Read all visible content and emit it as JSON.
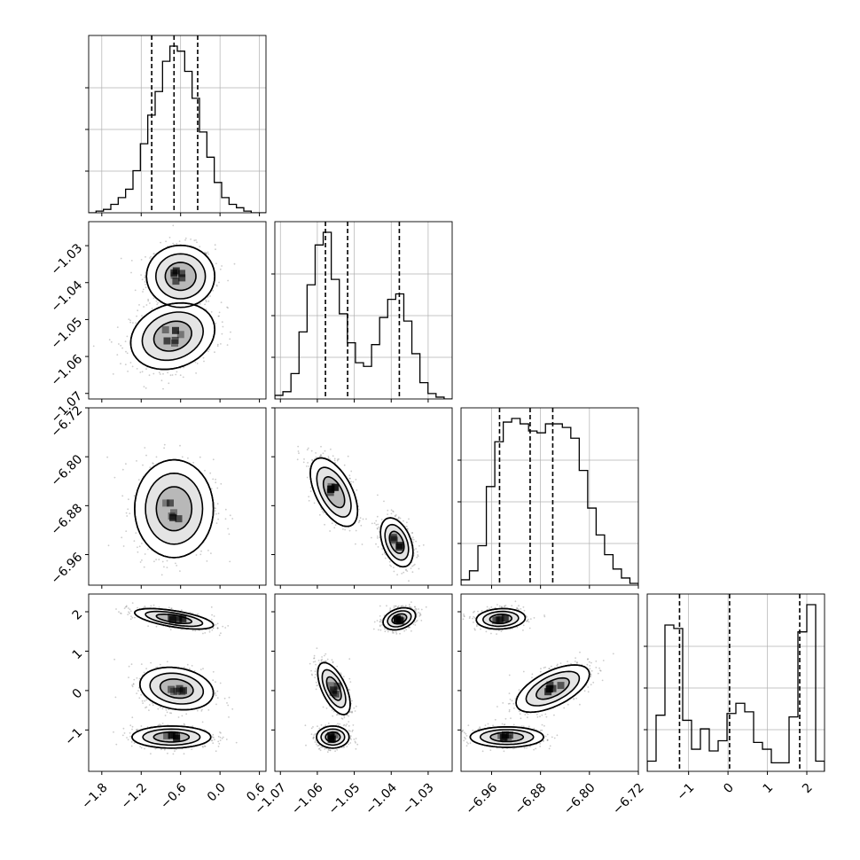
{
  "chart_data": {
    "type": "corner",
    "parameters": [
      "",
      "",
      "",
      ""
    ],
    "ranges": [
      [
        -2.0,
        0.7
      ],
      [
        -1.0715,
        -1.0235
      ],
      [
        -7.01,
        -6.72
      ],
      [
        -2.05,
        2.45
      ]
    ],
    "xticks": [
      {
        "values": [
          -1.8,
          -1.2,
          -0.6,
          0.0,
          0.6
        ],
        "labels": [
          "−1.8",
          "−1.2",
          "−0.6",
          "0.0",
          "0.6"
        ]
      },
      {
        "values": [
          -1.07,
          -1.06,
          -1.05,
          -1.04,
          -1.03
        ],
        "labels": [
          "−1.07",
          "−1.06",
          "−1.05",
          "−1.04",
          "−1.03"
        ]
      },
      {
        "values": [
          -6.96,
          -6.88,
          -6.8,
          -6.72
        ],
        "labels": [
          "−6.96",
          "−6.88",
          "−6.80",
          "−6.72"
        ]
      },
      {
        "values": [
          -1,
          0,
          1,
          2
        ],
        "labels": [
          "−1",
          "0",
          "1",
          "2"
        ]
      }
    ],
    "yticks": [
      null,
      {
        "values": [
          -1.03,
          -1.04,
          -1.05,
          -1.06,
          -1.07
        ],
        "labels": [
          "−1.03",
          "−1.04",
          "−1.05",
          "−1.06",
          "−1.07"
        ]
      },
      {
        "values": [
          -6.72,
          -6.8,
          -6.88,
          -6.96
        ],
        "labels": [
          "−6.72",
          "−6.80",
          "−6.88",
          "−6.96"
        ]
      },
      {
        "values": [
          2,
          1,
          0,
          -1
        ],
        "labels": [
          "2",
          "1",
          "0",
          "−1"
        ]
      }
    ],
    "quantiles": [
      [
        -1.04,
        -0.7,
        -0.34
      ],
      [
        -1.0578,
        -1.0518,
        -1.0378
      ],
      [
        -6.947,
        -6.897,
        -6.86
      ],
      [
        -1.23,
        0.04,
        1.82
      ]
    ],
    "histograms": [
      [
        0,
        1,
        2,
        5,
        9,
        14,
        25,
        41,
        58,
        72,
        90,
        99,
        96,
        84,
        68,
        48,
        33,
        18,
        9,
        5,
        3,
        1,
        0,
        0
      ],
      [
        2,
        4,
        14,
        37,
        63,
        85,
        92,
        66,
        47,
        31,
        20,
        18,
        30,
        45,
        55,
        58,
        43,
        25,
        9,
        3,
        1,
        0
      ],
      [
        3,
        8,
        22,
        55,
        80,
        91,
        93,
        90,
        86,
        85,
        90,
        90,
        88,
        82,
        64,
        43,
        28,
        17,
        9,
        4,
        1
      ],
      [
        6,
        33,
        86,
        84,
        30,
        13,
        25,
        12,
        18,
        34,
        40,
        35,
        17,
        13,
        5,
        5,
        32,
        82,
        98,
        6
      ]
    ],
    "blobs": [
      [],
      [
        {
          "panel": [
            1,
            0
          ],
          "cx": -0.6,
          "cy": -1.0383,
          "sx": 0.26,
          "sy": 0.0042,
          "rho": 0.0
        },
        {
          "panel": [
            1,
            0
          ],
          "cx": -0.72,
          "cy": -1.0545,
          "sx": 0.32,
          "sy": 0.0045,
          "rho": 0.2
        }
      ],
      [
        {
          "panel": [
            2,
            0
          ],
          "cx": -0.7,
          "cy": -6.885,
          "sx": 0.3,
          "sy": 0.04,
          "rho": 0.0
        },
        {
          "panel": [
            2,
            1
          ],
          "cx": -1.0555,
          "cy": -6.858,
          "sx": 0.0032,
          "sy": 0.028,
          "rho": -0.55
        },
        {
          "panel": [
            2,
            1
          ],
          "cx": -1.0385,
          "cy": -6.94,
          "sx": 0.0022,
          "sy": 0.02,
          "rho": -0.4
        }
      ],
      [
        {
          "panel": [
            3,
            0
          ],
          "cx": -0.7,
          "cy": 1.82,
          "sx": 0.3,
          "sy": 0.13,
          "rho": -0.6
        },
        {
          "panel": [
            3,
            0
          ],
          "cx": -0.66,
          "cy": 0.05,
          "sx": 0.28,
          "sy": 0.27,
          "rho": -0.2
        },
        {
          "panel": [
            3,
            0
          ],
          "cx": -0.74,
          "cy": -1.18,
          "sx": 0.3,
          "sy": 0.14,
          "rho": 0.0
        },
        {
          "panel": [
            3,
            1
          ],
          "cx": -1.0378,
          "cy": 1.82,
          "sx": 0.0022,
          "sy": 0.14,
          "rho": 0.3
        },
        {
          "panel": [
            3,
            1
          ],
          "cx": -1.0555,
          "cy": 0.05,
          "sx": 0.0022,
          "sy": 0.33,
          "rho": -0.6
        },
        {
          "panel": [
            3,
            1
          ],
          "cx": -1.0558,
          "cy": -1.18,
          "sx": 0.0022,
          "sy": 0.14,
          "rho": 0.0
        },
        {
          "panel": [
            3,
            2
          ],
          "cx": -6.945,
          "cy": 1.82,
          "sx": 0.02,
          "sy": 0.13,
          "rho": 0.1
        },
        {
          "panel": [
            3,
            2
          ],
          "cx": -6.86,
          "cy": 0.05,
          "sx": 0.03,
          "sy": 0.3,
          "rho": 0.6
        },
        {
          "panel": [
            3,
            2
          ],
          "cx": -6.935,
          "cy": -1.18,
          "sx": 0.03,
          "sy": 0.13,
          "rho": 0.0
        }
      ]
    ],
    "grid": true,
    "colors": {
      "points": "#8c8c8c",
      "contour": "#000000",
      "density": "#000000",
      "grid": "#b0b0b0"
    }
  }
}
